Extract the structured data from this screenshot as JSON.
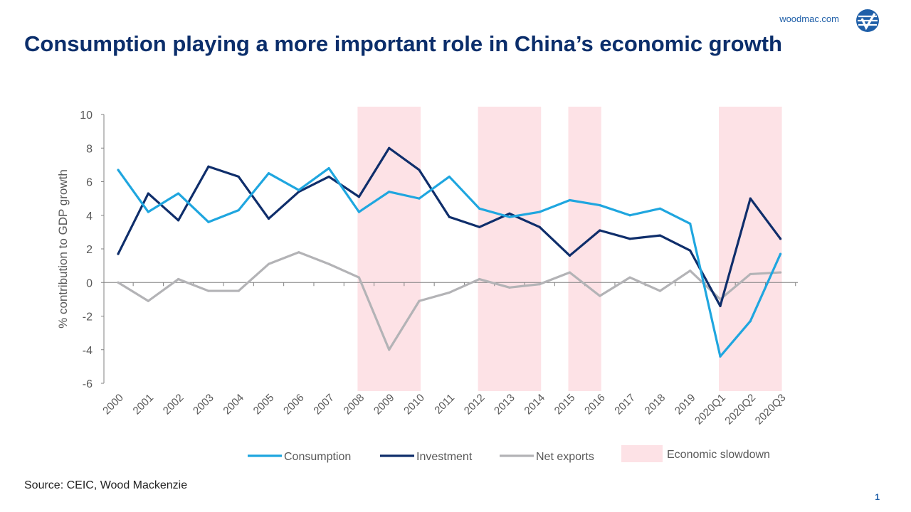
{
  "header": {
    "brand": "woodmac.com",
    "logo_icon": "wood-mackenzie-logo-icon"
  },
  "title": "Consumption playing a more important role in China’s economic growth",
  "source": "Source: CEIC, Wood Mackenzie",
  "page_number": "1",
  "chart_data": {
    "type": "line",
    "ylabel": "% contribution to GDP growth",
    "xlabel": "",
    "ylim": [
      -6,
      10
    ],
    "yticks": [
      10,
      8,
      6,
      4,
      2,
      0,
      -2,
      -4,
      -6
    ],
    "categories": [
      "2000",
      "2001",
      "2002",
      "2003",
      "2004",
      "2005",
      "2006",
      "2007",
      "2008",
      "2009",
      "2010",
      "2011",
      "2012",
      "2013",
      "2014",
      "2015",
      "2016",
      "2017",
      "2018",
      "2019",
      "2020Q1",
      "2020Q2",
      "2020Q3"
    ],
    "series": [
      {
        "name": "Consumption",
        "color": "#1fa6df",
        "values": [
          6.7,
          4.2,
          5.3,
          3.6,
          4.3,
          6.5,
          5.5,
          6.8,
          4.2,
          5.4,
          5.0,
          6.3,
          4.4,
          3.9,
          4.2,
          4.9,
          4.6,
          4.0,
          4.4,
          3.5,
          -4.4,
          -2.3,
          1.7
        ]
      },
      {
        "name": "Investment",
        "color": "#0f2e6b",
        "values": [
          1.7,
          5.3,
          3.7,
          6.9,
          6.3,
          3.8,
          5.4,
          6.3,
          5.1,
          8.0,
          6.7,
          3.9,
          3.3,
          4.1,
          3.3,
          1.6,
          3.1,
          2.6,
          2.8,
          1.9,
          -1.4,
          5.0,
          2.6
        ]
      },
      {
        "name": "Net exports",
        "color": "#b3b3b6",
        "values": [
          0.0,
          -1.1,
          0.2,
          -0.5,
          -0.5,
          1.1,
          1.8,
          1.1,
          0.3,
          -4.0,
          -1.1,
          -0.6,
          0.2,
          -0.3,
          -0.1,
          0.6,
          -0.8,
          0.3,
          -0.5,
          0.7,
          -1.0,
          0.5,
          0.6
        ]
      }
    ],
    "slowdown": {
      "label": "Economic slowdown",
      "color": "#fde2e6",
      "periods": [
        [
          "2008",
          "2010"
        ],
        [
          "2012",
          "2014"
        ],
        [
          "2015",
          "2016"
        ],
        [
          "2020Q1",
          "2020Q3"
        ]
      ]
    },
    "legend_position": "bottom"
  }
}
